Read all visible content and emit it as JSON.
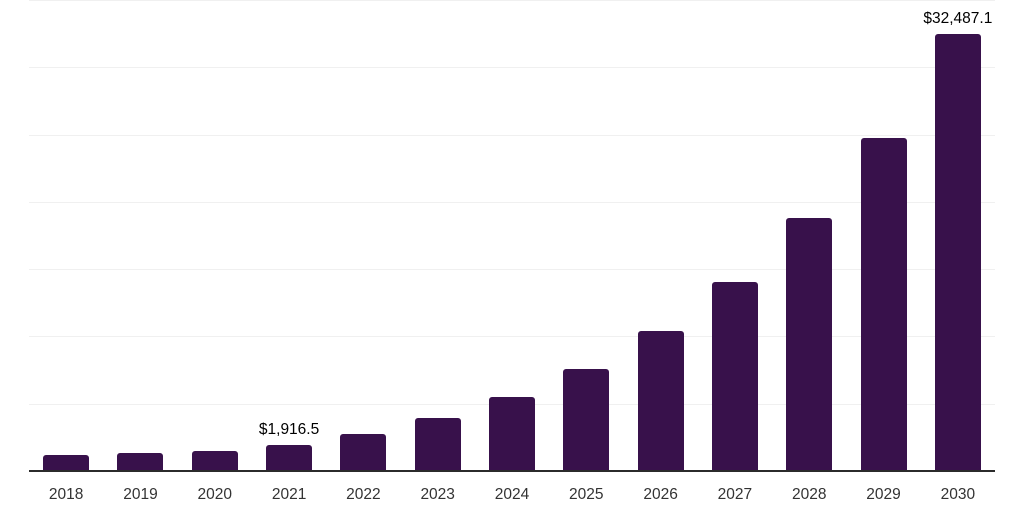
{
  "chart": {
    "background": "#FFFFFF",
    "bar_color": "#38114B",
    "grid_color": "#F0F0F0",
    "axis_line_color": "#2B2B2B",
    "tick_label_color": "#333333",
    "data_label_color": "#000000"
  },
  "chart_data": {
    "type": "bar",
    "title": "",
    "xlabel": "",
    "ylabel": "",
    "categories": [
      "2018",
      "2019",
      "2020",
      "2021",
      "2022",
      "2023",
      "2024",
      "2025",
      "2026",
      "2027",
      "2028",
      "2029",
      "2030"
    ],
    "values": [
      1190,
      1340,
      1460,
      1916.5,
      2730,
      3940,
      5500,
      7580,
      10400,
      14030,
      18780,
      24730,
      32487.1
    ],
    "data_labels": [
      "",
      "",
      "",
      "$1,916.5",
      "",
      "",
      "",
      "",
      "",
      "",
      "",
      "",
      "$32,487.1"
    ],
    "ylim": [
      0,
      35000
    ],
    "gridline_interval": 5000,
    "grid": true,
    "legend": false,
    "legend_position": "none"
  }
}
